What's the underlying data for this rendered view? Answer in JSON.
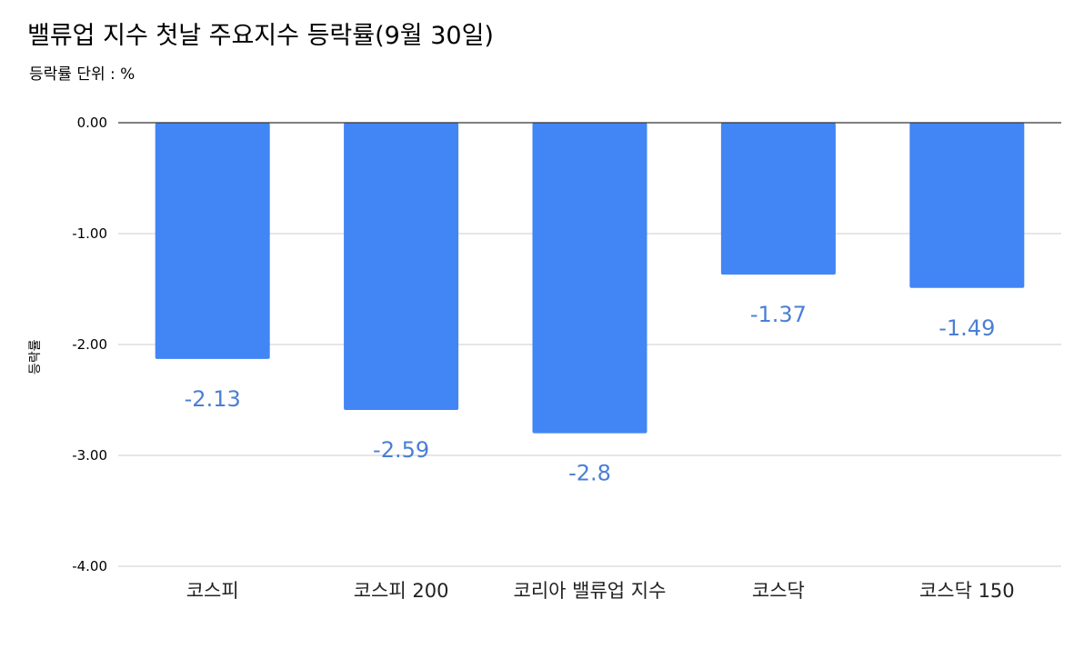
{
  "chart_data": {
    "type": "bar",
    "title": "밸류업 지수 첫날 주요지수 등락률(9월 30일)",
    "subtitle": "등락률 단위 : %",
    "xlabel": "",
    "ylabel": "등락률",
    "categories": [
      "코스피",
      "코스피 200",
      "코리아 밸류업 지수",
      "코스닥",
      "코스닥 150"
    ],
    "values": [
      -2.13,
      -2.59,
      -2.8,
      -1.37,
      -1.49
    ],
    "data_labels": [
      "-2.13",
      "-2.59",
      "-2.8",
      "-1.37",
      "-1.49"
    ],
    "ylim": [
      -4,
      0
    ],
    "yticks": [
      0,
      -1,
      -2,
      -3,
      -4
    ],
    "ytick_labels": [
      "0.00",
      "-1.00",
      "-2.00",
      "-3.00",
      "-4.00"
    ],
    "grid": true,
    "legend": "none",
    "bar_color": "#4285f4",
    "label_color": "#4a7fd4"
  }
}
